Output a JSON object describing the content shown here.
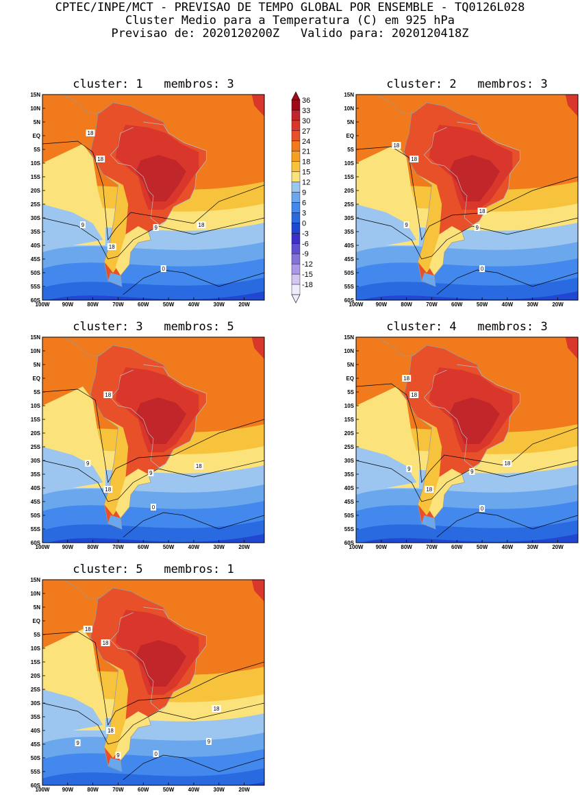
{
  "header": {
    "line1": "CPTEC/INPE/MCT - PREVISAO DE TEMPO GLOBAL POR ENSEMBLE - TQ0126L028",
    "line2": "Cluster Medio para a Temperatura (C) em 925 hPa",
    "line3": "Previsao de: 2020120200Z   Valido para: 2020120418Z"
  },
  "axes": {
    "lat_labels": [
      "15N",
      "10N",
      "5N",
      "EQ",
      "5S",
      "10S",
      "15S",
      "20S",
      "25S",
      "30S",
      "35S",
      "40S",
      "45S",
      "50S",
      "55S",
      "60S"
    ],
    "lon_labels": [
      "100W",
      "90W",
      "80W",
      "70W",
      "60W",
      "50W",
      "40W",
      "30W",
      "20W"
    ]
  },
  "colorbar": {
    "labels": [
      "36",
      "33",
      "30",
      "27",
      "24",
      "21",
      "18",
      "15",
      "12",
      "9",
      "6",
      "3",
      "0",
      "-3",
      "-6",
      "-9",
      "-12",
      "-15",
      "-18"
    ],
    "colors": [
      "#a00a18",
      "#c0262a",
      "#d9372c",
      "#e8502a",
      "#f07a1c",
      "#f5a020",
      "#f8c33c",
      "#fbe27a",
      "#9cc6ef",
      "#6aa7ec",
      "#4388ec",
      "#2a6ae0",
      "#2047cf",
      "#3b31c6",
      "#5e4fd3",
      "#8772dc",
      "#ac98e6",
      "#d3c6f2",
      "#f0ecfb"
    ]
  },
  "clusters": [
    {
      "title": "cluster: 1   membros: 3",
      "contour_labels": [
        {
          "t": "18",
          "lat": 1,
          "lon": -81
        },
        {
          "t": "18",
          "lat": -8.5,
          "lon": -77
        },
        {
          "t": "18",
          "lat": -32.5,
          "lon": -37
        },
        {
          "t": "9",
          "lat": -32.5,
          "lon": -84
        },
        {
          "t": "9",
          "lat": -33.5,
          "lon": -55
        },
        {
          "t": "18",
          "lat": -40.5,
          "lon": -72.5
        },
        {
          "t": "0",
          "lat": -48.5,
          "lon": -52
        }
      ]
    },
    {
      "title": "cluster: 2   membros: 3",
      "contour_labels": [
        {
          "t": "18",
          "lat": -3.5,
          "lon": -84
        },
        {
          "t": "18",
          "lat": -8.5,
          "lon": -77
        },
        {
          "t": "18",
          "lat": -27.5,
          "lon": -50
        },
        {
          "t": "9",
          "lat": -32.5,
          "lon": -80
        },
        {
          "t": "9",
          "lat": -33.5,
          "lon": -52
        },
        {
          "t": "0",
          "lat": -48.5,
          "lon": -50
        }
      ]
    },
    {
      "title": "cluster: 3   membros: 5",
      "contour_labels": [
        {
          "t": "18",
          "lat": -6,
          "lon": -74
        },
        {
          "t": "18",
          "lat": -32,
          "lon": -38
        },
        {
          "t": "9",
          "lat": -31,
          "lon": -82
        },
        {
          "t": "9",
          "lat": -34.5,
          "lon": -57
        },
        {
          "t": "18",
          "lat": -40.5,
          "lon": -74
        },
        {
          "t": "0",
          "lat": -47,
          "lon": -56
        }
      ]
    },
    {
      "title": "cluster: 4   membros: 3",
      "contour_labels": [
        {
          "t": "18",
          "lat": 0,
          "lon": -80
        },
        {
          "t": "18",
          "lat": -6,
          "lon": -77
        },
        {
          "t": "18",
          "lat": -31,
          "lon": -40
        },
        {
          "t": "9",
          "lat": -33,
          "lon": -79
        },
        {
          "t": "9",
          "lat": -34,
          "lon": -54
        },
        {
          "t": "18",
          "lat": -40.5,
          "lon": -71
        },
        {
          "t": "0",
          "lat": -47.5,
          "lon": -50
        }
      ]
    },
    {
      "title": "cluster: 5   membros: 1",
      "contour_labels": [
        {
          "t": "18",
          "lat": -3,
          "lon": -82
        },
        {
          "t": "18",
          "lat": -8,
          "lon": -75
        },
        {
          "t": "18",
          "lat": -32,
          "lon": -31
        },
        {
          "t": "18",
          "lat": -40,
          "lon": -73
        },
        {
          "t": "9",
          "lat": -44.5,
          "lon": -86
        },
        {
          "t": "9",
          "lat": -44,
          "lon": -34
        },
        {
          "t": "9",
          "lat": -49,
          "lon": -70
        },
        {
          "t": "0",
          "lat": -48.5,
          "lon": -55
        }
      ]
    }
  ]
}
